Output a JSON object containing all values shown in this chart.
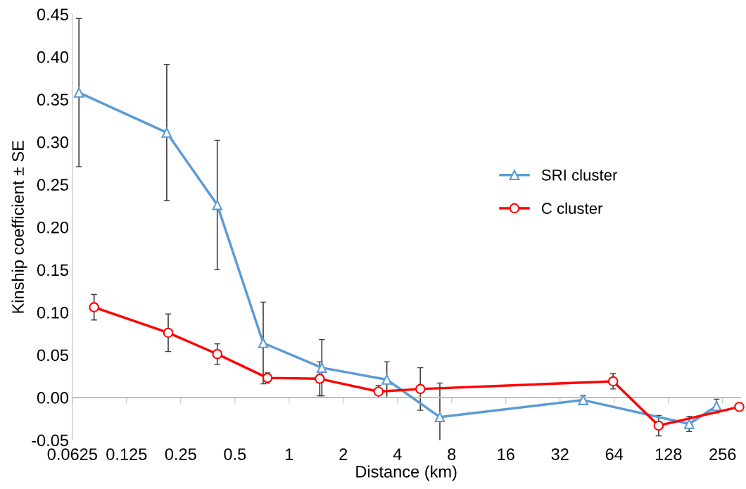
{
  "chart_data": {
    "type": "line",
    "xlabel": "Distance (km)",
    "ylabel": "Kinship coefficient ± SE",
    "log": "x",
    "xlim": [
      0.0625,
      320
    ],
    "xticks": [
      0.0625,
      0.125,
      0.25,
      0.5,
      1,
      2,
      4,
      8,
      16,
      32,
      64,
      128,
      256
    ],
    "ylim": [
      -0.05,
      0.45
    ],
    "yticks": [
      {
        "value": -0.05,
        "label": "-0.05"
      },
      {
        "value": 0,
        "label": "0.00"
      },
      {
        "value": 0.05,
        "label": "0.05"
      },
      {
        "value": 0.1,
        "label": "0.10"
      },
      {
        "value": 0.15,
        "label": "0.15"
      },
      {
        "value": 0.2,
        "label": "0.20"
      },
      {
        "value": 0.25,
        "label": "0.25"
      },
      {
        "value": 0.3,
        "label": "0.30"
      },
      {
        "value": 0.35,
        "label": "0.35"
      },
      {
        "value": 0.4,
        "label": "0.40"
      },
      {
        "value": 0.45,
        "label": "0.45"
      }
    ],
    "legend": "right",
    "line_style": "solid",
    "series": [
      {
        "name": "SRI cluster",
        "color": "#5b9bd5",
        "marker": "triangle",
        "x": [
          0.068,
          0.209,
          0.399,
          0.718,
          1.52,
          3.49,
          6.88,
          43,
          167,
          237
        ],
        "values": [
          0.358,
          0.311,
          0.226,
          0.064,
          0.035,
          0.021,
          -0.023,
          -0.003,
          -0.031,
          -0.01
        ],
        "errors": [
          0.087,
          0.08,
          0.076,
          0.048,
          0.033,
          0.021,
          0.04,
          0.005,
          0.009,
          0.008
        ]
      },
      {
        "name": "C cluster",
        "color": "#ff0000",
        "marker": "circle",
        "x": [
          0.0825,
          0.213,
          0.399,
          0.758,
          1.48,
          3.14,
          5.36,
          63.1,
          113,
          317
        ],
        "values": [
          0.106,
          0.076,
          0.051,
          0.023,
          0.022,
          0.007,
          0.01,
          0.019,
          -0.033,
          -0.011
        ],
        "errors": [
          0.015,
          0.022,
          0.012,
          0.006,
          0.02,
          0.007,
          0.025,
          0.009,
          0.012,
          null
        ]
      }
    ]
  }
}
